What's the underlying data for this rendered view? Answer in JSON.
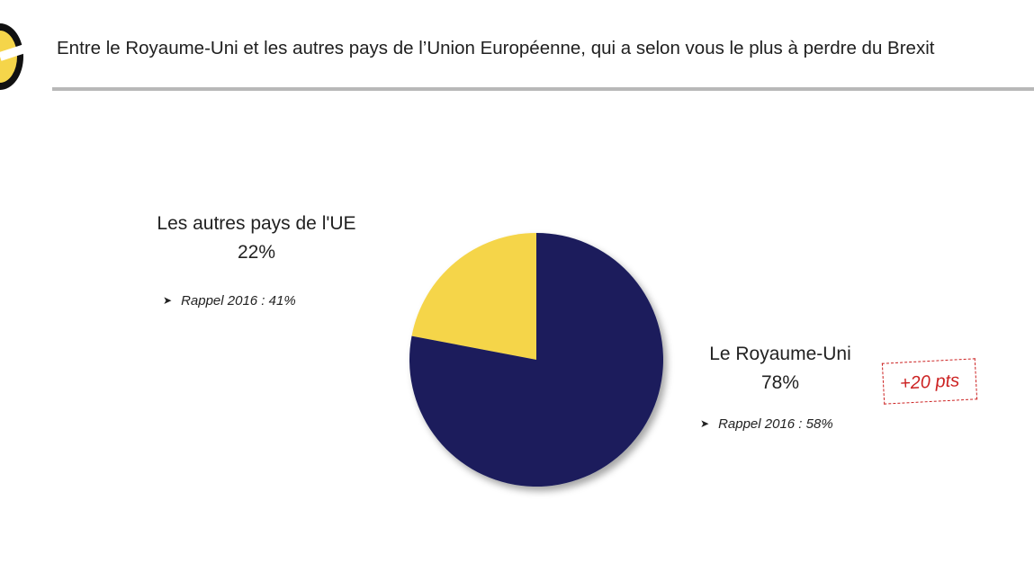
{
  "header": {
    "title": "Entre le Royaume-Uni et les autres pays de l’Union Européenne, qui a selon vous le plus à perdre du Brexit"
  },
  "colors": {
    "royaume_uni": "#1a1f5c",
    "autres_pays_ue": "#f5d54a",
    "delta": "#cc2222",
    "rule": "#b8b8b8"
  },
  "chart_data": {
    "type": "pie",
    "title": "",
    "slices": [
      {
        "label": "Les autres pays de l'UE",
        "value": 22,
        "value_label": "22%",
        "recall": "Rappel 2016 : 41%",
        "color": "#f5d54a"
      },
      {
        "label": "Le Royaume-Uni",
        "value": 78,
        "value_label": "78%",
        "recall": "Rappel 2016 : 58%",
        "color": "#1a1f5c"
      }
    ],
    "annotation": "+20 pts",
    "legend": "none"
  }
}
